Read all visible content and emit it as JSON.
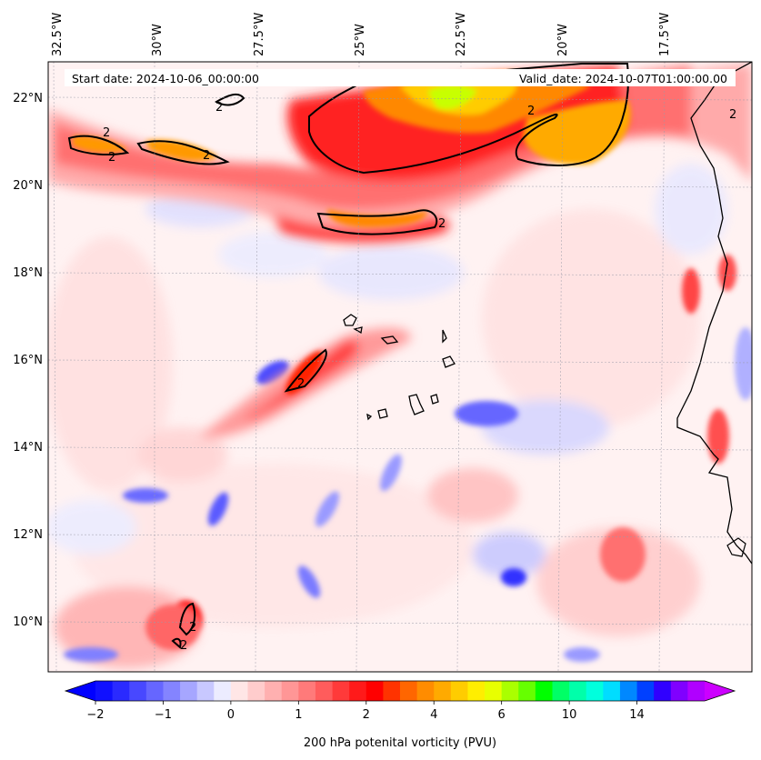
{
  "header": {
    "start_date": "Start date: 2024-10-06_00:00:00",
    "valid_date": "Valid_date: 2024-10-07T01:00:00.00"
  },
  "axes": {
    "lon_labels": [
      "32.5°W",
      "30°W",
      "27.5°W",
      "25°W",
      "22.5°W",
      "20°W",
      "17.5°W"
    ],
    "lat_labels": [
      "22°N",
      "20°N",
      "18°N",
      "16°N",
      "14°N",
      "12°N",
      "10°N"
    ]
  },
  "colorbar": {
    "label": "200 hPa potenital vorticity (PVU)",
    "tick_labels": [
      "−2",
      "−1",
      "0",
      "1",
      "2",
      "4",
      "6",
      "10",
      "14"
    ],
    "colors": [
      "#1010ff",
      "#2a2aff",
      "#4848ff",
      "#6666ff",
      "#8484ff",
      "#a6a6ff",
      "#c8c8ff",
      "#ececff",
      "#ffe6e6",
      "#ffcccc",
      "#ffb0b0",
      "#ff9696",
      "#ff7a7a",
      "#ff5c5c",
      "#ff3a3a",
      "#ff1a1a",
      "#ff0000",
      "#ff3300",
      "#ff6600",
      "#ff8c00",
      "#ffaa00",
      "#ffcc00",
      "#ffee00",
      "#e8ff00",
      "#aaff00",
      "#66ff00",
      "#00ff00",
      "#00ff66",
      "#00ffaa",
      "#00ffdd",
      "#00ddff",
      "#0088ff",
      "#0040ff",
      "#3000ff",
      "#8000ff",
      "#b000ff"
    ],
    "under_color": "#0000ff",
    "over_color": "#cc00ff"
  },
  "contour_labels": [
    "2",
    "2",
    "2",
    "2",
    "2",
    "2",
    "2",
    "2",
    "2",
    "2"
  ]
}
